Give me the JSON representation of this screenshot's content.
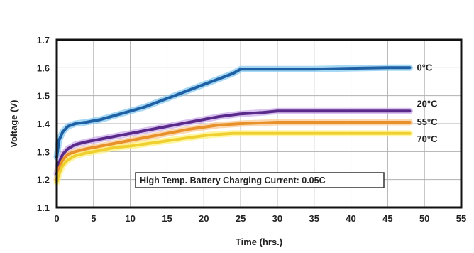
{
  "chart_data": {
    "type": "line",
    "xlabel": "Time (hrs.)",
    "ylabel": "Voltage (V)",
    "xlim": [
      0,
      55
    ],
    "ylim": [
      1.1,
      1.7
    ],
    "xticks": [
      "0",
      "5",
      "10",
      "15",
      "20",
      "25",
      "30",
      "35",
      "40",
      "45",
      "50",
      "55"
    ],
    "yticks": [
      "1.1",
      "1.2",
      "1.3",
      "1.4",
      "1.5",
      "1.6",
      "1.7"
    ],
    "grid": true,
    "annotation": "High Temp. Battery Charging Current: 0.05C",
    "series": [
      {
        "name": "0°C",
        "color": "#1f5fa3",
        "glow": "#7fc8f0",
        "x": [
          0,
          0.3,
          0.8,
          1.5,
          2.5,
          4,
          6,
          8,
          10,
          12,
          14,
          16,
          18,
          20,
          22,
          24,
          25,
          30,
          35,
          40,
          45,
          48
        ],
        "y": [
          1.28,
          1.34,
          1.37,
          1.39,
          1.4,
          1.405,
          1.415,
          1.43,
          1.445,
          1.46,
          1.48,
          1.5,
          1.52,
          1.54,
          1.56,
          1.58,
          1.595,
          1.595,
          1.595,
          1.598,
          1.6,
          1.6
        ]
      },
      {
        "name": "20°C",
        "color": "#5a2a8a",
        "glow": "#c9a8e8",
        "x": [
          0,
          0.3,
          0.8,
          1.5,
          2.5,
          4,
          6,
          8,
          10,
          14,
          18,
          22,
          25,
          28,
          30,
          35,
          40,
          45,
          48
        ],
        "y": [
          1.22,
          1.26,
          1.29,
          1.31,
          1.325,
          1.335,
          1.345,
          1.355,
          1.365,
          1.385,
          1.405,
          1.425,
          1.435,
          1.44,
          1.445,
          1.445,
          1.445,
          1.445,
          1.445
        ]
      },
      {
        "name": "55°C",
        "color": "#e8902a",
        "glow": "#f8c890",
        "x": [
          0,
          0.3,
          0.8,
          1.5,
          2.5,
          4,
          6,
          8,
          10,
          14,
          18,
          22,
          25,
          30,
          35,
          40,
          45,
          48
        ],
        "y": [
          1.2,
          1.24,
          1.27,
          1.29,
          1.3,
          1.31,
          1.32,
          1.33,
          1.34,
          1.36,
          1.38,
          1.395,
          1.4,
          1.405,
          1.405,
          1.405,
          1.405,
          1.405
        ]
      },
      {
        "name": "70°C",
        "color": "#f0d030",
        "glow": "#fff27a",
        "x": [
          0,
          0.3,
          0.8,
          1.5,
          2.5,
          4,
          6,
          8,
          10,
          14,
          18,
          21,
          24,
          30,
          35,
          40,
          45,
          48
        ],
        "y": [
          1.19,
          1.22,
          1.25,
          1.27,
          1.285,
          1.295,
          1.305,
          1.315,
          1.32,
          1.335,
          1.35,
          1.36,
          1.365,
          1.365,
          1.365,
          1.365,
          1.365,
          1.365
        ]
      }
    ]
  }
}
